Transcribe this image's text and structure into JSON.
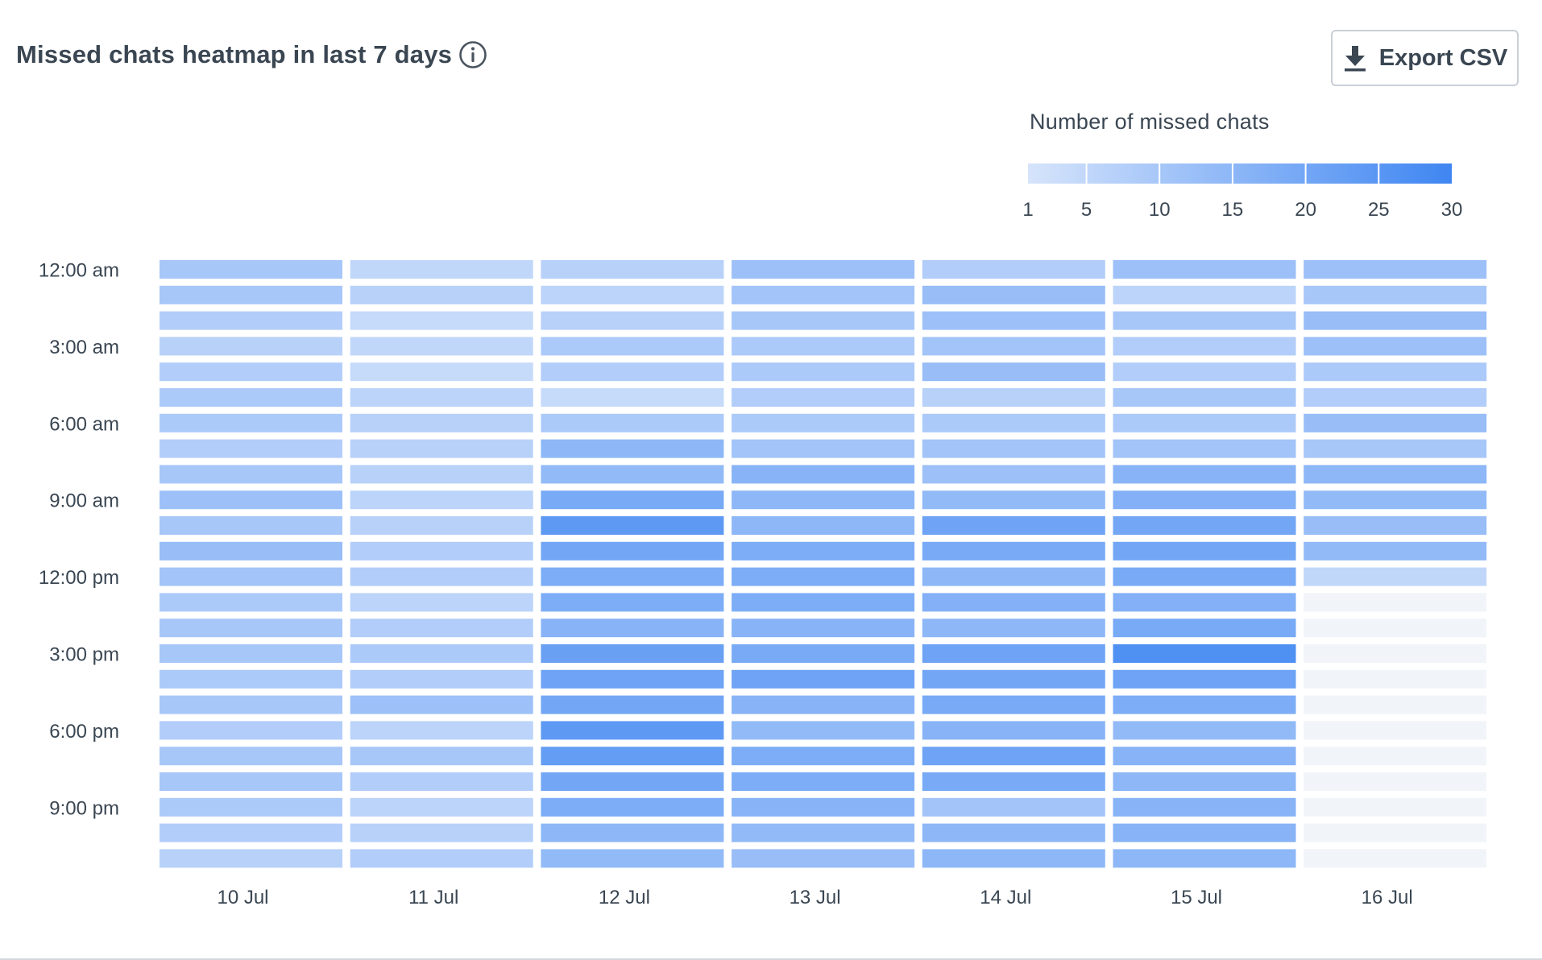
{
  "header": {
    "title": "Missed chats heatmap in last 7 days",
    "info_icon": "info-circle-icon"
  },
  "toolbar": {
    "export_label": "Export CSV",
    "export_icon": "download-icon"
  },
  "colors": {
    "scale_low": "#d6e4fb",
    "scale_high": "#3f86f2",
    "empty_cell": "#f1f4f8",
    "text": "#3a4652"
  },
  "chart_data": {
    "type": "heatmap",
    "title": "Missed chats heatmap in last 7 days",
    "x_categories": [
      "10 Jul",
      "11 Jul",
      "12 Jul",
      "13 Jul",
      "14 Jul",
      "15 Jul",
      "16 Jul"
    ],
    "y_categories": [
      "12:00 am",
      "1:00 am",
      "2:00 am",
      "3:00 am",
      "4:00 am",
      "5:00 am",
      "6:00 am",
      "7:00 am",
      "8:00 am",
      "9:00 am",
      "10:00 am",
      "11:00 am",
      "12:00 pm",
      "1:00 pm",
      "2:00 pm",
      "3:00 pm",
      "4:00 pm",
      "5:00 pm",
      "6:00 pm",
      "7:00 pm",
      "8:00 pm",
      "9:00 pm",
      "10:00 pm",
      "11:00 pm"
    ],
    "y_tick_labels": [
      "12:00 am",
      "3:00 am",
      "6:00 am",
      "9:00 am",
      "12:00 pm",
      "3:00 pm",
      "6:00 pm",
      "9:00 pm"
    ],
    "series": [
      {
        "name": "10 Jul",
        "values": [
          10,
          10,
          8,
          7,
          8,
          9,
          9,
          8,
          10,
          12,
          10,
          13,
          11,
          9,
          10,
          10,
          9,
          10,
          8,
          10,
          10,
          9,
          8,
          7
        ]
      },
      {
        "name": "11 Jul",
        "values": [
          5,
          7,
          4,
          5,
          4,
          6,
          7,
          7,
          7,
          6,
          7,
          8,
          8,
          6,
          8,
          9,
          8,
          12,
          6,
          10,
          8,
          6,
          7,
          8
        ]
      },
      {
        "name": "12 Jul",
        "values": [
          7,
          6,
          7,
          9,
          8,
          4,
          9,
          15,
          14,
          19,
          24,
          20,
          18,
          18,
          16,
          22,
          21,
          20,
          24,
          23,
          20,
          18,
          15,
          14
        ]
      },
      {
        "name": "13 Jul",
        "values": [
          12,
          11,
          10,
          9,
          9,
          8,
          9,
          11,
          16,
          15,
          15,
          18,
          18,
          18,
          16,
          19,
          21,
          16,
          14,
          18,
          18,
          16,
          14,
          13
        ]
      },
      {
        "name": "14 Jul",
        "values": [
          8,
          13,
          12,
          11,
          13,
          7,
          9,
          11,
          12,
          14,
          21,
          19,
          15,
          17,
          15,
          21,
          20,
          19,
          16,
          21,
          19,
          11,
          15,
          15
        ]
      },
      {
        "name": "15 Jul",
        "values": [
          12,
          6,
          10,
          8,
          8,
          10,
          9,
          11,
          16,
          17,
          20,
          20,
          19,
          17,
          19,
          27,
          21,
          18,
          14,
          16,
          15,
          16,
          16,
          15
        ]
      },
      {
        "name": "16 Jul",
        "values": [
          12,
          10,
          13,
          12,
          9,
          8,
          13,
          10,
          15,
          14,
          13,
          14,
          5,
          0,
          0,
          0,
          0,
          0,
          0,
          0,
          0,
          0,
          0,
          0
        ]
      }
    ],
    "legend": {
      "title": "Number of missed chats",
      "ticks": [
        1,
        5,
        10,
        15,
        20,
        25,
        30
      ],
      "placement": "top-right"
    },
    "value_range": [
      1,
      30
    ]
  }
}
